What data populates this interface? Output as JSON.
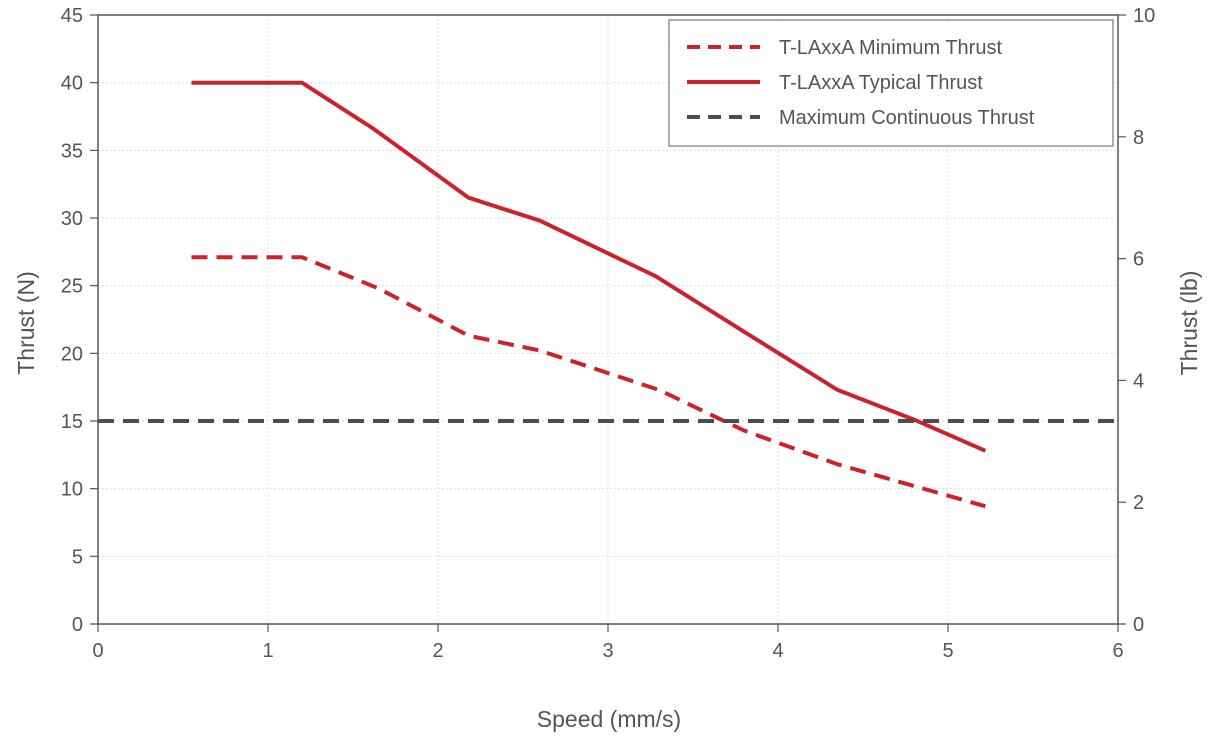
{
  "chart_data": {
    "type": "line",
    "xlabel": "Speed (mm/s)",
    "ylabel": "Thrust (N)",
    "y2label": "Thrust (lb)",
    "xlim": [
      0,
      6
    ],
    "ylim": [
      0,
      45
    ],
    "y2lim": [
      0,
      10
    ],
    "xticks": [
      "0",
      "1",
      "2",
      "3",
      "4",
      "5",
      "6"
    ],
    "yticks": [
      "0",
      "5",
      "10",
      "15",
      "20",
      "25",
      "30",
      "35",
      "40",
      "45"
    ],
    "y2ticks": [
      "0",
      "2",
      "4",
      "6",
      "8",
      "10"
    ],
    "grid": true,
    "legend_position": "top-right",
    "series": [
      {
        "name": "T-LAxxA Minimum Thrust",
        "color": "#cc2229",
        "style": "dashed",
        "x": [
          0.55,
          1.2,
          1.65,
          2.18,
          2.6,
          3.3,
          3.8,
          4.35,
          4.8,
          5.22
        ],
        "y": [
          27.1,
          27.1,
          24.8,
          21.3,
          20.2,
          17.3,
          14.3,
          11.8,
          10.2,
          8.7
        ]
      },
      {
        "name": "T-LAxxA Typical Thrust",
        "color": "#cc2229",
        "style": "solid",
        "x": [
          0.55,
          1.2,
          1.62,
          2.18,
          2.6,
          3.28,
          3.8,
          4.35,
          4.8,
          5.22
        ],
        "y": [
          40,
          40,
          36.6,
          31.5,
          29.8,
          25.7,
          21.6,
          17.3,
          15.1,
          12.8
        ]
      },
      {
        "name": "Maximum Continuous Thrust",
        "color": "#4d4d4d",
        "style": "dashed",
        "x": [
          0,
          6
        ],
        "y": [
          15,
          15
        ]
      }
    ]
  }
}
